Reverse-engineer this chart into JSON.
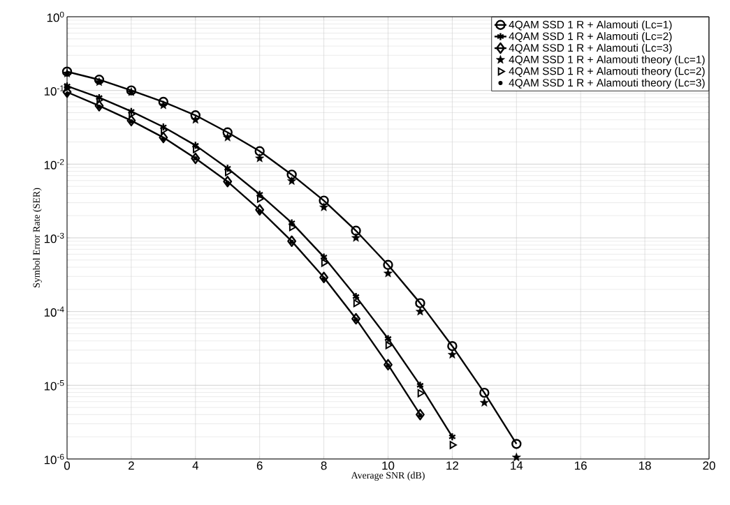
{
  "chart_data": {
    "type": "line",
    "xlabel": "Average SNR (dB)",
    "ylabel": "Symbol Error Rate (SER)",
    "x": [
      0,
      1,
      2,
      3,
      4,
      5,
      6,
      7,
      8,
      9,
      10,
      11,
      12,
      13,
      14
    ],
    "series": [
      {
        "name": "4QAM SSD 1 R + Alamouti (Lc=1)",
        "marker": "circle",
        "color": "#000000",
        "values": [
          0.18,
          0.14,
          0.1,
          0.07,
          0.046,
          0.027,
          0.015,
          0.0072,
          0.0032,
          0.00125,
          0.00043,
          0.00013,
          3.4e-05,
          7.9e-06,
          1.6e-06
        ]
      },
      {
        "name": "4QAM SSD 1 R + Alamouti (Lc=2)",
        "marker": "cross",
        "color": "#000000",
        "values": [
          0.115,
          0.08,
          0.052,
          0.032,
          0.018,
          0.0088,
          0.0039,
          0.0016,
          0.00055,
          0.00016,
          4.3e-05,
          1e-05,
          2e-06,
          null,
          null
        ]
      },
      {
        "name": "4QAM SSD 1 R + Alamouti (Lc=3)",
        "marker": "diamond",
        "color": "#000000",
        "values": [
          0.095,
          0.062,
          0.039,
          0.023,
          0.012,
          0.0058,
          0.0024,
          0.0009,
          0.00029,
          8e-05,
          1.9e-05,
          4e-06,
          null,
          null,
          null
        ]
      },
      {
        "name": "4QAM SSD 1 R + Alamouti theory (Lc=1)",
        "type": "scatter",
        "marker": "star",
        "color": "#000000",
        "values": [
          0.17,
          0.13,
          0.095,
          0.063,
          0.04,
          0.023,
          0.012,
          0.0059,
          0.0026,
          0.001,
          0.00033,
          0.0001,
          2.6e-05,
          5.8e-06,
          1.05e-06
        ]
      },
      {
        "name": "4QAM SSD 1 R + Alamouti theory (Lc=2)",
        "type": "scatter",
        "marker": "triangle",
        "color": "#000000",
        "values": [
          0.11,
          0.075,
          0.048,
          0.029,
          0.016,
          0.0078,
          0.0034,
          0.0014,
          0.00046,
          0.00013,
          3.5e-05,
          7.8e-06,
          1.55e-06,
          null,
          null
        ]
      },
      {
        "name": "4QAM SSD 1 R + Alamouti theory (Lc=3)",
        "type": "scatter",
        "marker": "circle",
        "color": "#000000",
        "values": [
          0.09,
          0.06,
          0.038,
          0.022,
          0.012,
          0.0056,
          0.0023,
          0.00088,
          0.00028,
          7.8e-05,
          1.85e-05,
          3.9e-06,
          null,
          null,
          null
        ]
      }
    ],
    "log": "y",
    "grid": true,
    "legend": "top right",
    "line_style": "solid",
    "xlim": [
      0,
      20
    ],
    "xticks": [
      0,
      2,
      4,
      6,
      8,
      10,
      12,
      14,
      16,
      18,
      20
    ],
    "ylim": [
      1e-06,
      1
    ],
    "yticks": [
      {
        "value": 1e-06,
        "label": "10$^{-6}$"
      },
      {
        "value": 1e-05,
        "label": "10$^{-5}$"
      },
      {
        "value": 0.0001,
        "label": "10$^{-4}$"
      },
      {
        "value": 0.001,
        "label": "10$^{-3}$"
      },
      {
        "value": 0.01,
        "label": "10$^{-2}$"
      },
      {
        "value": 0.1,
        "label": "10$^{-1}$"
      },
      {
        "value": 1,
        "label": "10$^{0}$"
      }
    ]
  }
}
